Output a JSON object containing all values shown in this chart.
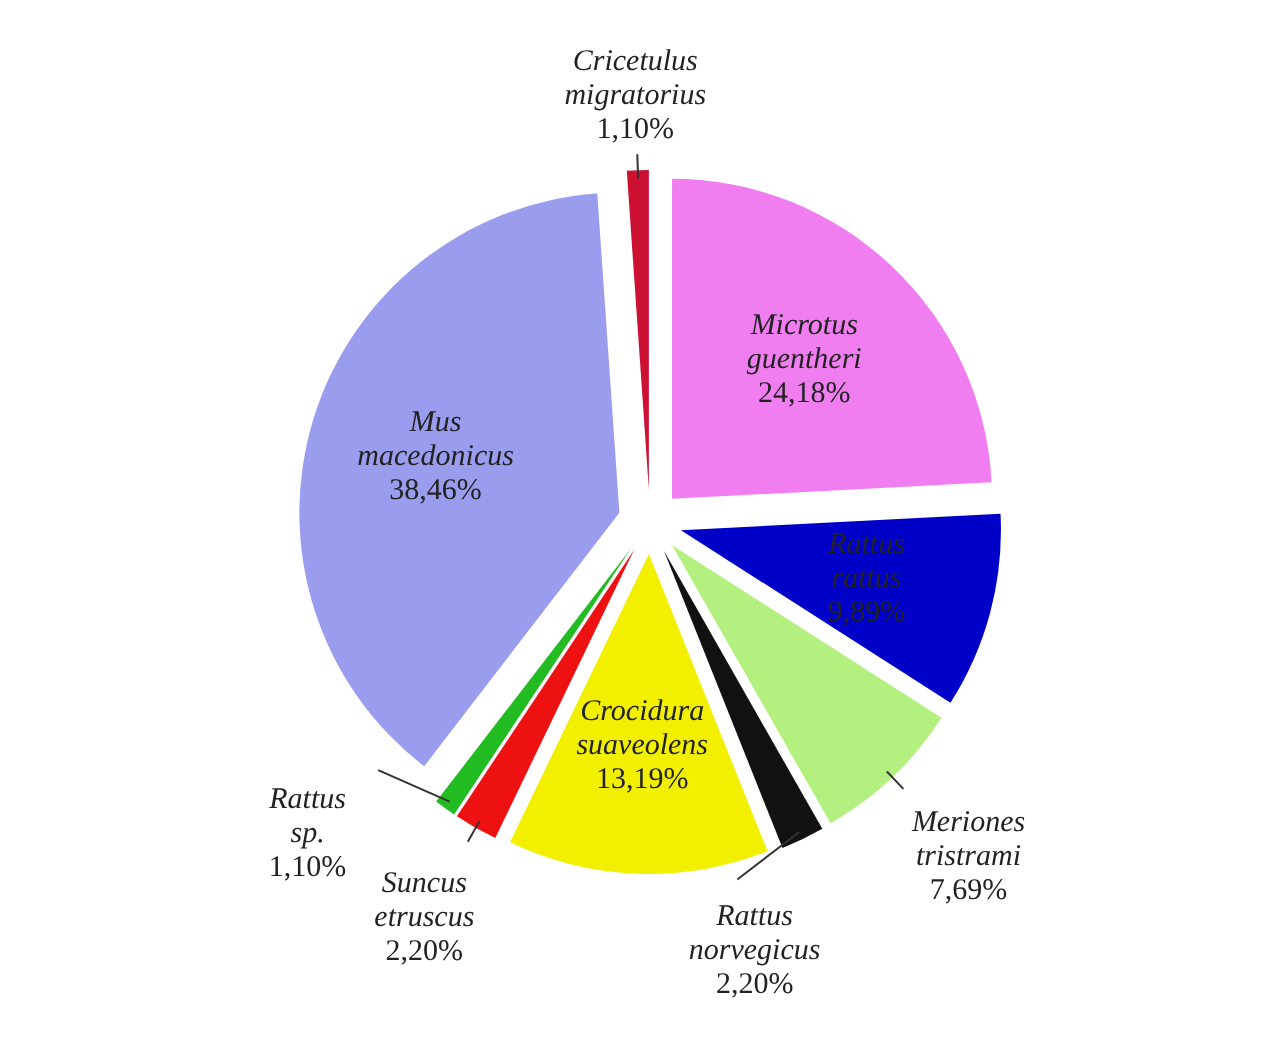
{
  "chart_data": {
    "type": "pie",
    "categories": [
      "Microtus guentheri",
      "Rattus rattus",
      "Meriones tristrami",
      "Rattus norvegicus",
      "Crocidura suaveolens",
      "Suncus etruscus",
      "Rattus sp.",
      "Mus macedonicus",
      "Cricetulus migratorius"
    ],
    "values": [
      24.18,
      9.89,
      7.69,
      2.2,
      13.19,
      2.2,
      1.1,
      38.46,
      1.1
    ],
    "value_labels": [
      "24,18%",
      "9,89%",
      "7,69%",
      "2,20%",
      "13,19%",
      "2,20%",
      "1,10%",
      "38,46%",
      "1,10%"
    ],
    "colors": [
      "#f07ef0",
      "#0000c8",
      "#b4f080",
      "#111111",
      "#f2f000",
      "#ee1111",
      "#22bb22",
      "#9a9cee",
      "#cc1133"
    ],
    "legend": false
  }
}
